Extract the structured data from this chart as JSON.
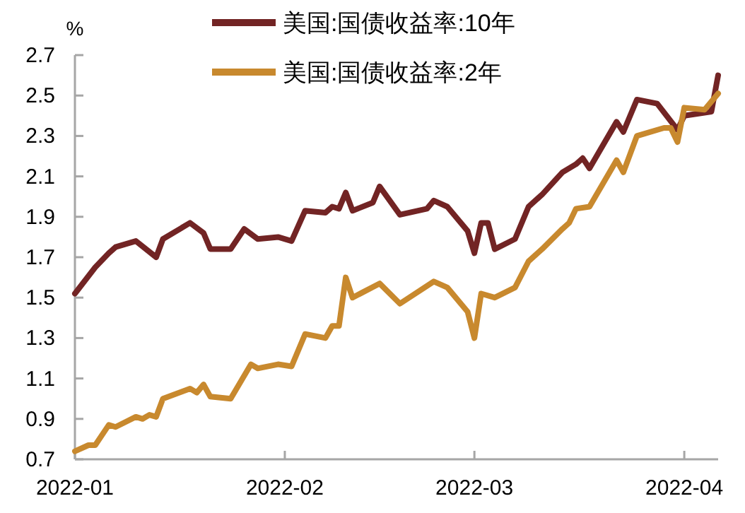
{
  "chart_data": {
    "type": "line",
    "ylabel": "%",
    "legend": "top",
    "xlim": [
      "2022-01-01",
      "2022-04-06"
    ],
    "xticks": [
      "2022-01",
      "2022-02",
      "2022-03",
      "2022-04"
    ],
    "ylim": [
      0.7,
      2.7
    ],
    "yticks": [
      0.7,
      0.9,
      1.1,
      1.3,
      1.5,
      1.7,
      1.9,
      2.1,
      2.3,
      2.5,
      2.7
    ],
    "series": [
      {
        "name": "美国:国债收益率:10年",
        "color": "#722424",
        "x": [
          "2022-01-01",
          "2022-01-04",
          "2022-01-06",
          "2022-01-07",
          "2022-01-10",
          "2022-01-13",
          "2022-01-14",
          "2022-01-18",
          "2022-01-20",
          "2022-01-21",
          "2022-01-24",
          "2022-01-26",
          "2022-01-28",
          "2022-01-31",
          "2022-02-02",
          "2022-02-04",
          "2022-02-07",
          "2022-02-08",
          "2022-02-09",
          "2022-02-10",
          "2022-02-11",
          "2022-02-14",
          "2022-02-15",
          "2022-02-18",
          "2022-02-22",
          "2022-02-23",
          "2022-02-25",
          "2022-02-28",
          "2022-03-01",
          "2022-03-02",
          "2022-03-03",
          "2022-03-04",
          "2022-03-07",
          "2022-03-09",
          "2022-03-11",
          "2022-03-14",
          "2022-03-16",
          "2022-03-17",
          "2022-03-18",
          "2022-03-22",
          "2022-03-23",
          "2022-03-25",
          "2022-03-28",
          "2022-03-31",
          "2022-04-01",
          "2022-04-05",
          "2022-04-06"
        ],
        "values": [
          1.52,
          1.65,
          1.72,
          1.75,
          1.78,
          1.7,
          1.79,
          1.87,
          1.82,
          1.74,
          1.74,
          1.84,
          1.79,
          1.8,
          1.78,
          1.93,
          1.92,
          1.95,
          1.94,
          2.02,
          1.93,
          1.97,
          2.05,
          1.91,
          1.94,
          1.98,
          1.95,
          1.83,
          1.72,
          1.87,
          1.87,
          1.74,
          1.79,
          1.95,
          2.01,
          2.12,
          2.16,
          2.19,
          2.14,
          2.37,
          2.32,
          2.48,
          2.46,
          2.33,
          2.4,
          2.42,
          2.6
        ]
      },
      {
        "name": "美国:国债收益率:2年",
        "color": "#c8892e",
        "x": [
          "2022-01-01",
          "2022-01-03",
          "2022-01-04",
          "2022-01-06",
          "2022-01-07",
          "2022-01-10",
          "2022-01-11",
          "2022-01-12",
          "2022-01-13",
          "2022-01-14",
          "2022-01-18",
          "2022-01-19",
          "2022-01-20",
          "2022-01-21",
          "2022-01-24",
          "2022-01-27",
          "2022-01-28",
          "2022-01-31",
          "2022-02-02",
          "2022-02-04",
          "2022-02-07",
          "2022-02-08",
          "2022-02-09",
          "2022-02-10",
          "2022-02-11",
          "2022-02-15",
          "2022-02-18",
          "2022-02-23",
          "2022-02-25",
          "2022-02-28",
          "2022-03-01",
          "2022-03-02",
          "2022-03-04",
          "2022-03-07",
          "2022-03-09",
          "2022-03-11",
          "2022-03-14",
          "2022-03-15",
          "2022-03-16",
          "2022-03-18",
          "2022-03-22",
          "2022-03-23",
          "2022-03-25",
          "2022-03-29",
          "2022-03-30",
          "2022-03-31",
          "2022-04-01",
          "2022-04-04",
          "2022-04-06"
        ],
        "values": [
          0.74,
          0.77,
          0.77,
          0.87,
          0.86,
          0.91,
          0.9,
          0.92,
          0.91,
          1.0,
          1.05,
          1.03,
          1.07,
          1.01,
          1.0,
          1.17,
          1.15,
          1.17,
          1.16,
          1.32,
          1.3,
          1.36,
          1.36,
          1.6,
          1.5,
          1.57,
          1.47,
          1.58,
          1.55,
          1.43,
          1.3,
          1.52,
          1.5,
          1.55,
          1.68,
          1.74,
          1.84,
          1.87,
          1.94,
          1.95,
          2.18,
          2.12,
          2.3,
          2.34,
          2.34,
          2.27,
          2.44,
          2.43,
          2.51
        ]
      }
    ]
  }
}
